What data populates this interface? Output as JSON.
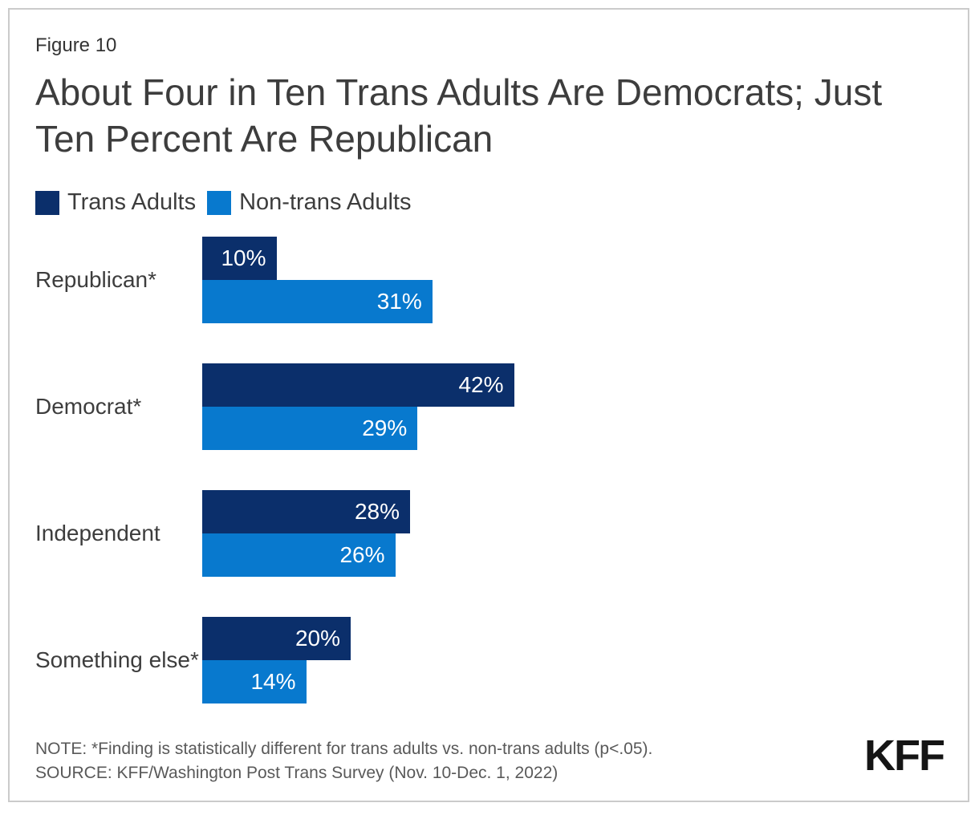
{
  "figure_label": "Figure 10",
  "title": "About Four in Ten Trans Adults Are Democrats; Just Ten Percent Are Republican",
  "legend": [
    {
      "label": "Trans Adults",
      "color": "#0b2f6b"
    },
    {
      "label": "Non-trans Adults",
      "color": "#0879ce"
    }
  ],
  "chart_data": {
    "type": "bar",
    "orientation": "horizontal",
    "categories": [
      "Republican*",
      "Democrat*",
      "Independent",
      "Something else*"
    ],
    "series": [
      {
        "name": "Trans Adults",
        "color": "#0b2f6b",
        "values": [
          10,
          42,
          28,
          20
        ]
      },
      {
        "name": "Non-trans Adults",
        "color": "#0879ce",
        "values": [
          31,
          29,
          26,
          14
        ]
      }
    ],
    "value_suffix": "%",
    "value_labels": "inside-end",
    "axis_shown": false,
    "xlim": [
      0,
      100
    ],
    "legend_position": "top-left"
  },
  "note": "NOTE: *Finding is statistically different for trans adults vs. non-trans adults (p<.05).",
  "source": "SOURCE: KFF/Washington Post Trans Survey (Nov. 10-Dec. 1, 2022)",
  "logo_text": "KFF"
}
